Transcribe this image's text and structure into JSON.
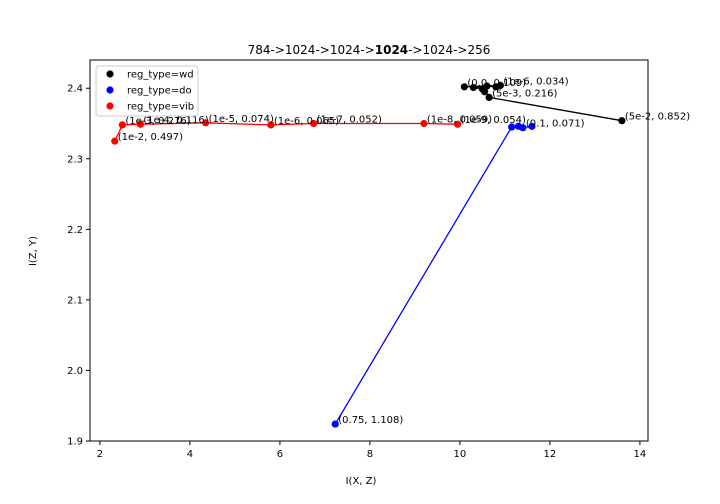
{
  "chart_data": {
    "type": "scatter",
    "title_parts": [
      {
        "text": "784->1024->1024->",
        "bold": false
      },
      {
        "text": "1024",
        "bold": true
      },
      {
        "text": "->1024->256",
        "bold": false
      }
    ],
    "xlabel": "I(X, Z)",
    "ylabel": "I(Z, Y)",
    "xlim": [
      1.78,
      14.18
    ],
    "ylim": [
      1.9,
      2.44
    ],
    "xticks": [
      "2",
      "4",
      "6",
      "8",
      "10",
      "12",
      "14"
    ],
    "yticks": [
      "1.9",
      "2.0",
      "2.1",
      "2.2",
      "2.3",
      "2.4"
    ],
    "grid": false,
    "legend_position": "top-left",
    "series": [
      {
        "name": "reg_type=wd",
        "color": "#000000",
        "points": [
          {
            "x": 13.6,
            "y": 2.354,
            "label": "(5e-2, 0.852)"
          },
          {
            "x": 10.65,
            "y": 2.387,
            "label": "(5e-3, 0.216)"
          },
          {
            "x": 10.55,
            "y": 2.395,
            "label": ""
          },
          {
            "x": 10.5,
            "y": 2.399,
            "label": ""
          },
          {
            "x": 10.3,
            "y": 2.401,
            "label": ""
          },
          {
            "x": 10.6,
            "y": 2.403,
            "label": ""
          },
          {
            "x": 10.8,
            "y": 2.402,
            "label": ""
          },
          {
            "x": 10.9,
            "y": 2.404,
            "label": "(1e-6, 0.034)"
          },
          {
            "x": 10.1,
            "y": 2.402,
            "label": "(0.0, 0.109)"
          }
        ]
      },
      {
        "name": "reg_type=do",
        "color": "#0000ff",
        "points": [
          {
            "x": 7.23,
            "y": 1.924,
            "label": "(0.75, 1.108)"
          },
          {
            "x": 11.15,
            "y": 2.345,
            "label": ""
          },
          {
            "x": 11.3,
            "y": 2.346,
            "label": ""
          },
          {
            "x": 11.4,
            "y": 2.344,
            "label": "(0.1, 0.071)"
          },
          {
            "x": 11.6,
            "y": 2.346,
            "label": ""
          }
        ]
      },
      {
        "name": "reg_type=vib",
        "color": "#ff0000",
        "points": [
          {
            "x": 2.33,
            "y": 2.325,
            "label": "(1e-2, 0.497)"
          },
          {
            "x": 2.5,
            "y": 2.348,
            "label": "(1e-3, 0.276)"
          },
          {
            "x": 2.9,
            "y": 2.349,
            "label": "(1e-4, 0.116)"
          },
          {
            "x": 4.35,
            "y": 2.351,
            "label": "(1e-5, 0.074)"
          },
          {
            "x": 5.8,
            "y": 2.348,
            "label": "(1e-6, 0.065)"
          },
          {
            "x": 6.75,
            "y": 2.35,
            "label": "(1e-7, 0.052)"
          },
          {
            "x": 9.2,
            "y": 2.35,
            "label": "(1e-8, 0.059)"
          },
          {
            "x": 9.95,
            "y": 2.349,
            "label": "(1e-9, 0.054)"
          }
        ]
      }
    ]
  }
}
